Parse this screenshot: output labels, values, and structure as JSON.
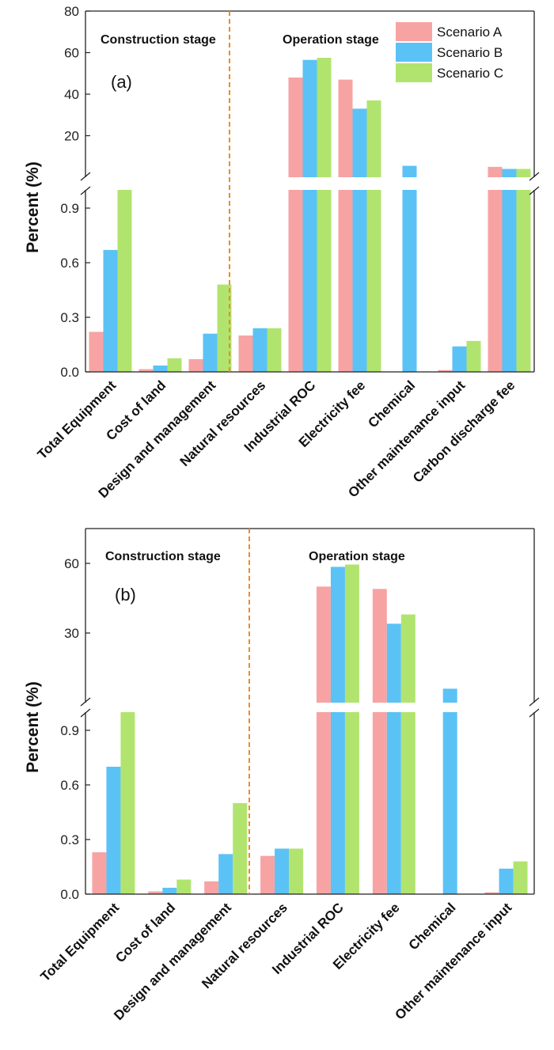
{
  "chart_data": [
    {
      "type": "bar",
      "panel_label": "(a)",
      "ylabel": "Percent (%)",
      "broken_axis": true,
      "lower_ylim": [
        0,
        1.0
      ],
      "upper_ylim": [
        0,
        80
      ],
      "lower_ticks": [
        "0.0",
        "0.3",
        "0.6",
        "0.9"
      ],
      "lower_tick_values": [
        0,
        0.3,
        0.6,
        0.9
      ],
      "upper_ticks": [
        "20",
        "40",
        "60",
        "80"
      ],
      "upper_tick_values": [
        20,
        40,
        60,
        80
      ],
      "stage_labels": [
        "Construction stage",
        "Operation stage"
      ],
      "categories": [
        "Total Equipment",
        "Cost of land",
        "Design and management",
        "Natural resources",
        "Industrial ROC",
        "Electricity fee",
        "Chemical",
        "Other maintenance input",
        "Carbon discharge fee"
      ],
      "legend": {
        "position": "top-right",
        "entries": [
          "Scenario A",
          "Scenario B",
          "Scenario C"
        ]
      },
      "series": [
        {
          "name": "Scenario A",
          "color": "#f7a3a3",
          "values": [
            0.22,
            0.015,
            0.07,
            0.2,
            48,
            47,
            0,
            0.01,
            5
          ]
        },
        {
          "name": "Scenario B",
          "color": "#5bc2f5",
          "values": [
            0.67,
            0.035,
            0.21,
            0.24,
            56.5,
            33,
            5.5,
            0.14,
            4
          ]
        },
        {
          "name": "Scenario C",
          "color": "#b1e46e",
          "values": [
            1.0,
            0.075,
            0.48,
            0.24,
            57.5,
            37,
            0,
            0.17,
            4
          ]
        }
      ]
    },
    {
      "type": "bar",
      "panel_label": "(b)",
      "ylabel": "Percent (%)",
      "broken_axis": true,
      "lower_ylim": [
        0,
        1.0
      ],
      "upper_ylim": [
        0,
        75
      ],
      "lower_ticks": [
        "0.0",
        "0.3",
        "0.6",
        "0.9"
      ],
      "lower_tick_values": [
        0,
        0.3,
        0.6,
        0.9
      ],
      "upper_ticks": [
        "30",
        "60"
      ],
      "upper_tick_values": [
        30,
        60
      ],
      "stage_labels": [
        "Construction stage",
        "Operation stage"
      ],
      "categories": [
        "Total Equipment",
        "Cost of land",
        "Design and management",
        "Natural resources",
        "Industrial ROC",
        "Electricity fee",
        "Chemical",
        "Other maintenance input"
      ],
      "series": [
        {
          "name": "Scenario A",
          "color": "#f7a3a3",
          "values": [
            0.23,
            0.015,
            0.07,
            0.21,
            50,
            49,
            0,
            0.01
          ]
        },
        {
          "name": "Scenario B",
          "color": "#5bc2f5",
          "values": [
            0.7,
            0.035,
            0.22,
            0.25,
            58.5,
            34,
            6,
            0.14
          ]
        },
        {
          "name": "Scenario C",
          "color": "#b1e46e",
          "values": [
            1.0,
            0.08,
            0.5,
            0.25,
            59.5,
            38,
            0,
            0.18
          ]
        }
      ]
    }
  ]
}
